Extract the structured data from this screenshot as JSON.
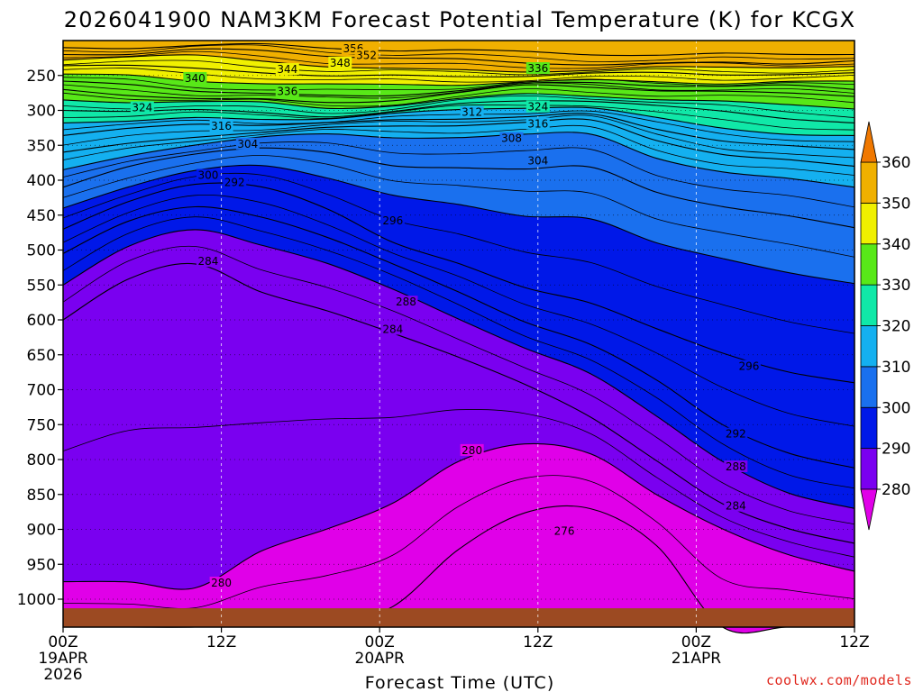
{
  "chart_data": {
    "type": "contourf",
    "title": "2026041900 NAM3KM Forecast Potential Temperature (K) for KCGX",
    "xlabel": "Forecast Time (UTC)",
    "ylabel": "",
    "x_range_hours": [
      0,
      60
    ],
    "y_range_hpa": [
      1040,
      200
    ],
    "y_ticks": [
      "250",
      "300",
      "350",
      "400",
      "450",
      "500",
      "550",
      "600",
      "650",
      "700",
      "750",
      "800",
      "850",
      "900",
      "950",
      "1000"
    ],
    "x_ticks": [
      {
        "hour": 0,
        "time": "00Z",
        "date": "19APR",
        "year": "2026"
      },
      {
        "hour": 12,
        "time": "12Z",
        "date": "",
        "year": ""
      },
      {
        "hour": 24,
        "time": "00Z",
        "date": "20APR",
        "year": ""
      },
      {
        "hour": 36,
        "time": "12Z",
        "date": "",
        "year": ""
      },
      {
        "hour": 48,
        "time": "00Z",
        "date": "21APR",
        "year": ""
      },
      {
        "hour": 60,
        "time": "12Z",
        "date": "",
        "year": ""
      }
    ],
    "colorbar": {
      "levels": [
        280,
        290,
        300,
        310,
        320,
        330,
        340,
        350,
        360
      ],
      "labels": [
        "280",
        "290",
        "300",
        "310",
        "320",
        "330",
        "340",
        "350",
        "360"
      ],
      "bands": [
        "#e000e8",
        "#7a00f0",
        "#0018e8",
        "#1a70ee",
        "#14b0f0",
        "#10e8a8",
        "#58e818",
        "#f0f000",
        "#f0b000",
        "#f07800"
      ]
    },
    "surface_color": "#9c4a22",
    "surface_pressure_hpa": 1013,
    "levels": [
      {
        "value": 356,
        "p": [
          210,
          208,
          206,
          205,
          208,
          212,
          215,
          218,
          220,
          222,
          222,
          221,
          220
        ]
      },
      {
        "value": 352,
        "p": [
          220,
          218,
          215,
          216,
          222,
          227,
          230,
          232,
          232,
          232,
          231,
          230,
          229
        ]
      },
      {
        "value": 348,
        "p": [
          228,
          226,
          224,
          228,
          235,
          240,
          241,
          241,
          241,
          240,
          239,
          238,
          237
        ]
      },
      {
        "value": 344,
        "p": [
          236,
          236,
          238,
          242,
          250,
          252,
          252,
          251,
          250,
          249,
          248,
          247,
          246
        ]
      },
      {
        "value": 340,
        "p": [
          248,
          252,
          258,
          262,
          266,
          265,
          262,
          258,
          257,
          257,
          258,
          258,
          258
        ]
      },
      {
        "value": 336,
        "p": [
          258,
          264,
          270,
          275,
          279,
          276,
          268,
          262,
          262,
          264,
          266,
          268,
          270
        ]
      },
      {
        "value": 332,
        "p": [
          270,
          275,
          280,
          285,
          290,
          285,
          276,
          268,
          268,
          270,
          273,
          276,
          280
        ]
      },
      {
        "value": 328,
        "p": [
          285,
          288,
          290,
          292,
          297,
          292,
          284,
          276,
          276,
          282,
          288,
          292,
          298
        ]
      },
      {
        "value": 324,
        "p": [
          300,
          300,
          300,
          302,
          305,
          300,
          292,
          286,
          286,
          296,
          305,
          312,
          318
        ]
      },
      {
        "value": 320,
        "p": [
          318,
          315,
          312,
          312,
          312,
          308,
          302,
          296,
          296,
          312,
          324,
          330,
          336
        ]
      },
      {
        "value": 316,
        "p": [
          336,
          330,
          322,
          320,
          318,
          315,
          310,
          305,
          305,
          328,
          342,
          350,
          356
        ]
      },
      {
        "value": 312,
        "p": [
          360,
          348,
          335,
          328,
          325,
          323,
          320,
          318,
          318,
          345,
          362,
          372,
          380
        ]
      },
      {
        "value": 308,
        "p": [
          385,
          365,
          348,
          340,
          338,
          340,
          338,
          336,
          335,
          365,
          385,
          398,
          410
        ]
      },
      {
        "value": 304,
        "p": [
          410,
          380,
          362,
          356,
          360,
          375,
          380,
          385,
          380,
          415,
          440,
          455,
          468
        ]
      },
      {
        "value": 300,
        "p": [
          440,
          405,
          385,
          380,
          395,
          420,
          438,
          455,
          455,
          490,
          515,
          532,
          548
        ]
      },
      {
        "value": 296,
        "p": [
          470,
          430,
          410,
          412,
          440,
          490,
          522,
          552,
          572,
          612,
          648,
          672,
          690
        ]
      },
      {
        "value": 292,
        "p": [
          505,
          460,
          440,
          450,
          478,
          520,
          560,
          600,
          635,
          690,
          752,
          790,
          812
        ]
      },
      {
        "value": 288,
        "p": [
          550,
          495,
          470,
          490,
          520,
          560,
          600,
          640,
          680,
          740,
          800,
          845,
          870
        ]
      },
      {
        "value": 284,
        "p": [
          600,
          545,
          520,
          560,
          590,
          620,
          650,
          690,
          740,
          800,
          860,
          900,
          920
        ]
      },
      {
        "value": 280,
        "p": [
          975,
          975,
          980,
          930,
          900,
          860,
          800,
          780,
          795,
          850,
          900,
          940,
          960
        ]
      },
      {
        "value": 276,
        "p": [
          1040,
          1040,
          1040,
          1040,
          1040,
          1010,
          930,
          880,
          870,
          920,
          1040,
          1040,
          1040
        ]
      }
    ],
    "contour_labels": [
      "356",
      "352",
      "348",
      "344",
      "340",
      "336",
      "336",
      "324",
      "324",
      "316",
      "316",
      "312",
      "308",
      "304",
      "304",
      "300",
      "292",
      "296",
      "288",
      "284",
      "284",
      "280",
      "276",
      "296",
      "292",
      "288",
      "284",
      "280"
    ]
  },
  "credit": "coolwx.com/models",
  "credit_color": "#e0281e"
}
